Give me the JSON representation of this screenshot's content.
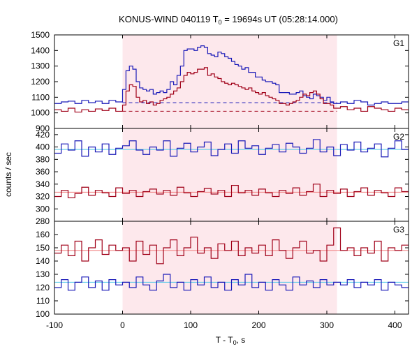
{
  "chart_data": {
    "type": "line",
    "title_main": "KONUS-WIND 040119 T",
    "title_sub": "0",
    "title_rest": " = 19694s UT (05:28:14.000)",
    "xlabel_main": "T - T",
    "xlabel_sub": "0",
    "xlabel_rest": ", s",
    "ylabel": "counts / sec",
    "xlim": [
      -100,
      420
    ],
    "xticks": [
      "-100",
      "0",
      "100",
      "200",
      "300",
      "400"
    ],
    "shaded_interval": [
      0,
      315
    ],
    "colors": {
      "blue": "#1a1ab8",
      "red": "#a00018",
      "cyan": "#50c8e8",
      "pink": "#f08080",
      "shade": "#fde8ec"
    },
    "panels": [
      {
        "label": "G1",
        "ylim": [
          900,
          1500
        ],
        "yticks": [
          "900",
          "1000",
          "1100",
          "1200",
          "1300",
          "1400",
          "1500"
        ],
        "background_levels": {
          "blue": 1065,
          "red": 1010
        },
        "series": [
          {
            "color": "blue",
            "x": [
              -100,
              -90,
              -80,
              -70,
              -60,
              -50,
              -40,
              -30,
              -20,
              -10,
              0,
              5,
              10,
              15,
              20,
              25,
              30,
              35,
              40,
              45,
              50,
              55,
              60,
              65,
              70,
              75,
              80,
              85,
              90,
              95,
              100,
              105,
              110,
              115,
              120,
              125,
              130,
              135,
              140,
              145,
              150,
              155,
              160,
              165,
              170,
              175,
              180,
              185,
              190,
              195,
              200,
              205,
              210,
              215,
              220,
              225,
              230,
              235,
              240,
              245,
              250,
              255,
              260,
              265,
              270,
              275,
              280,
              285,
              290,
              295,
              300,
              305,
              310,
              320,
              330,
              340,
              350,
              360,
              370,
              380,
              390,
              400,
              410
            ],
            "y": [
              1060,
              1070,
              1075,
              1060,
              1080,
              1065,
              1075,
              1060,
              1080,
              1070,
              1150,
              1270,
              1300,
              1280,
              1200,
              1160,
              1150,
              1140,
              1150,
              1120,
              1130,
              1140,
              1130,
              1150,
              1200,
              1180,
              1240,
              1300,
              1400,
              1410,
              1410,
              1400,
              1420,
              1430,
              1420,
              1380,
              1370,
              1360,
              1390,
              1380,
              1360,
              1350,
              1330,
              1310,
              1300,
              1280,
              1290,
              1260,
              1260,
              1230,
              1230,
              1210,
              1200,
              1200,
              1190,
              1180,
              1130,
              1130,
              1130,
              1120,
              1120,
              1130,
              1140,
              1110,
              1100,
              1090,
              1120,
              1110,
              1100,
              1080,
              1100,
              1070,
              1060,
              1070,
              1060,
              1080,
              1070,
              1050,
              1060,
              1070,
              1060,
              1060,
              1070
            ]
          },
          {
            "color": "red",
            "x": [
              -100,
              -90,
              -80,
              -70,
              -60,
              -50,
              -40,
              -30,
              -20,
              -10,
              0,
              5,
              10,
              15,
              20,
              25,
              30,
              35,
              40,
              45,
              50,
              55,
              60,
              65,
              70,
              75,
              80,
              85,
              90,
              95,
              100,
              105,
              110,
              115,
              120,
              125,
              130,
              135,
              140,
              145,
              150,
              155,
              160,
              165,
              170,
              175,
              180,
              185,
              190,
              195,
              200,
              205,
              210,
              215,
              220,
              225,
              230,
              235,
              240,
              245,
              250,
              255,
              260,
              265,
              270,
              275,
              280,
              285,
              290,
              295,
              300,
              305,
              310,
              320,
              330,
              340,
              350,
              360,
              370,
              380,
              390,
              400,
              410
            ],
            "y": [
              1020,
              1010,
              1030,
              1005,
              1020,
              1010,
              1025,
              1015,
              1030,
              1010,
              1050,
              1140,
              1180,
              1170,
              1100,
              1070,
              1080,
              1060,
              1070,
              1050,
              1060,
              1080,
              1090,
              1100,
              1120,
              1140,
              1160,
              1200,
              1240,
              1260,
              1250,
              1260,
              1280,
              1280,
              1290,
              1240,
              1250,
              1230,
              1220,
              1200,
              1190,
              1180,
              1190,
              1180,
              1170,
              1160,
              1150,
              1160,
              1140,
              1130,
              1120,
              1130,
              1110,
              1100,
              1090,
              1080,
              1060,
              1060,
              1050,
              1060,
              1070,
              1080,
              1100,
              1120,
              1110,
              1130,
              1140,
              1120,
              1090,
              1060,
              1060,
              1050,
              1030,
              1040,
              1020,
              1030,
              1010,
              1040,
              1030,
              1020,
              1010,
              1030,
              1020
            ]
          }
        ]
      },
      {
        "label": "G2",
        "ylim": [
          280,
          430
        ],
        "yticks": [
          "280",
          "300",
          "320",
          "340",
          "360",
          "380",
          "400",
          "420"
        ],
        "background_levels": {
          "blue": 396,
          "red": 327
        },
        "series": [
          {
            "color": "blue",
            "x": [
              -100,
              -90,
              -80,
              -70,
              -60,
              -50,
              -40,
              -30,
              -20,
              -10,
              0,
              10,
              20,
              30,
              40,
              50,
              60,
              70,
              80,
              90,
              100,
              110,
              120,
              130,
              140,
              150,
              160,
              170,
              180,
              190,
              200,
              210,
              220,
              230,
              240,
              250,
              260,
              270,
              280,
              290,
              300,
              310,
              320,
              330,
              340,
              350,
              360,
              370,
              380,
              390,
              400,
              410
            ],
            "y": [
              390,
              405,
              395,
              410,
              385,
              400,
              392,
              405,
              388,
              398,
              402,
              410,
              395,
              388,
              400,
              395,
              410,
              385,
              398,
              406,
              392,
              400,
              408,
              386,
              396,
              405,
              390,
              410,
              398,
              402,
              388,
              398,
              404,
              392,
              406,
              400,
              390,
              398,
              412,
              392,
              400,
              386,
              404,
              395,
              408,
              392,
              398,
              405,
              384,
              398,
              410,
              396
            ]
          },
          {
            "color": "red",
            "x": [
              -100,
              -90,
              -80,
              -70,
              -60,
              -50,
              -40,
              -30,
              -20,
              -10,
              0,
              10,
              20,
              30,
              40,
              50,
              60,
              70,
              80,
              90,
              100,
              110,
              120,
              130,
              140,
              150,
              160,
              170,
              180,
              190,
              200,
              210,
              220,
              230,
              240,
              250,
              260,
              270,
              280,
              290,
              300,
              310,
              320,
              330,
              340,
              350,
              360,
              370,
              380,
              390,
              400,
              410
            ],
            "y": [
              320,
              330,
              318,
              325,
              335,
              322,
              330,
              326,
              320,
              334,
              325,
              330,
              320,
              328,
              332,
              324,
              330,
              322,
              335,
              326,
              320,
              328,
              333,
              324,
              330,
              320,
              338,
              326,
              330,
              322,
              332,
              326,
              320,
              330,
              325,
              334,
              322,
              328,
              340,
              320,
              330,
              325,
              332,
              320,
              328,
              334,
              322,
              330,
              326,
              320,
              334,
              328
            ]
          }
        ]
      },
      {
        "label": "G3",
        "ylim": [
          100,
          170
        ],
        "yticks": [
          "100",
          "110",
          "120",
          "130",
          "140",
          "150",
          "160"
        ],
        "background_levels": {
          "blue": 124,
          "red": 148
        },
        "series": [
          {
            "color": "red",
            "x": [
              -100,
              -90,
              -80,
              -70,
              -60,
              -50,
              -40,
              -30,
              -20,
              -10,
              0,
              10,
              20,
              30,
              40,
              50,
              60,
              70,
              80,
              90,
              100,
              110,
              120,
              130,
              140,
              150,
              160,
              170,
              180,
              190,
              200,
              210,
              220,
              230,
              240,
              250,
              260,
              270,
              280,
              290,
              300,
              310,
              320,
              330,
              340,
              350,
              360,
              370,
              380,
              390,
              400,
              410
            ],
            "y": [
              146,
              152,
              144,
              155,
              140,
              150,
              156,
              145,
              152,
              148,
              150,
              140,
              155,
              145,
              152,
              138,
              150,
              156,
              144,
              150,
              158,
              146,
              150,
              142,
              153,
              148,
              155,
              144,
              150,
              146,
              152,
              144,
              156,
              148,
              142,
              150,
              155,
              146,
              148,
              140,
              152,
              165,
              148,
              150,
              144,
              150,
              146,
              155,
              140,
              150,
              148,
              152
            ]
          },
          {
            "color": "blue",
            "x": [
              -100,
              -90,
              -80,
              -70,
              -60,
              -50,
              -40,
              -30,
              -20,
              -10,
              0,
              10,
              20,
              30,
              40,
              50,
              60,
              70,
              80,
              90,
              100,
              110,
              120,
              130,
              140,
              150,
              160,
              170,
              180,
              190,
              200,
              210,
              220,
              230,
              240,
              250,
              260,
              270,
              280,
              290,
              300,
              310,
              320,
              330,
              340,
              350,
              360,
              370,
              380,
              390,
              400,
              410
            ],
            "y": [
              120,
              126,
              118,
              124,
              128,
              120,
              125,
              118,
              126,
              122,
              124,
              120,
              128,
              122,
              118,
              125,
              130,
              120,
              124,
              118,
              126,
              122,
              128,
              120,
              124,
              118,
              126,
              122,
              130,
              120,
              124,
              118,
              126,
              122,
              118,
              128,
              122,
              125,
              120,
              126,
              122,
              124,
              122,
              126,
              120,
              124,
              122,
              126,
              118,
              124,
              122,
              120
            ]
          }
        ]
      }
    ]
  }
}
